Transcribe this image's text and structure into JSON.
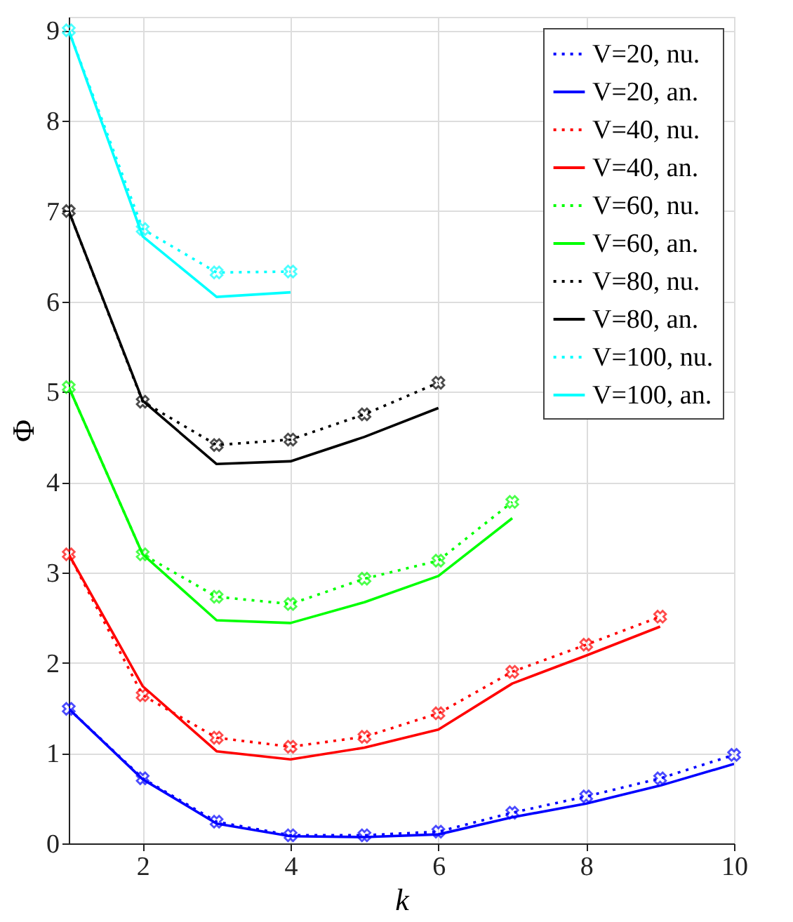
{
  "chart_data": {
    "type": "line",
    "xlabel": "k",
    "ylabel": "Φ",
    "xlim": [
      1,
      10
    ],
    "ylim": [
      0,
      9.15
    ],
    "xticks": [
      2,
      4,
      6,
      8,
      10
    ],
    "yticks": [
      0,
      1,
      2,
      3,
      4,
      5,
      6,
      7,
      8,
      9
    ],
    "grid": true,
    "legend": "top right",
    "series": [
      {
        "name": "V=20, nu.",
        "color": "#0000ff",
        "line_style": "dotted",
        "marker": "cross",
        "x": [
          1,
          2,
          3,
          4,
          5,
          6,
          7,
          8,
          9,
          10
        ],
        "values": [
          1.49,
          0.72,
          0.24,
          0.09,
          0.09,
          0.13,
          0.34,
          0.52,
          0.72,
          0.98
        ]
      },
      {
        "name": "V=20, an.",
        "color": "#0000ff",
        "line_style": "solid",
        "marker": "none",
        "x": [
          1,
          2,
          3,
          4,
          5,
          6,
          7,
          8,
          9,
          10
        ],
        "values": [
          1.49,
          0.71,
          0.22,
          0.08,
          0.07,
          0.1,
          0.29,
          0.44,
          0.64,
          0.88
        ]
      },
      {
        "name": "V=40, nu.",
        "color": "#ff0000",
        "line_style": "dotted",
        "marker": "cross",
        "x": [
          1,
          2,
          3,
          4,
          5,
          6,
          7,
          8,
          9
        ],
        "values": [
          3.2,
          1.64,
          1.17,
          1.07,
          1.18,
          1.44,
          1.9,
          2.2,
          2.51
        ]
      },
      {
        "name": "V=40, an.",
        "color": "#ff0000",
        "line_style": "solid",
        "marker": "none",
        "x": [
          1,
          2,
          3,
          4,
          5,
          6,
          7,
          8,
          9
        ],
        "values": [
          3.2,
          1.74,
          1.02,
          0.93,
          1.06,
          1.26,
          1.77,
          2.08,
          2.4
        ]
      },
      {
        "name": "V=60, nu.",
        "color": "#00ff00",
        "line_style": "dotted",
        "marker": "cross",
        "x": [
          1,
          2,
          3,
          4,
          5,
          6,
          7
        ],
        "values": [
          5.05,
          3.2,
          2.73,
          2.65,
          2.93,
          3.13,
          3.78
        ]
      },
      {
        "name": "V=60, an.",
        "color": "#00ff00",
        "line_style": "solid",
        "marker": "none",
        "x": [
          1,
          2,
          3,
          4,
          5,
          6,
          7
        ],
        "values": [
          5.05,
          3.2,
          2.47,
          2.44,
          2.67,
          2.96,
          3.6
        ]
      },
      {
        "name": "V=80, nu.",
        "color": "#000000",
        "line_style": "dotted",
        "marker": "cross",
        "x": [
          1,
          2,
          3,
          4,
          5,
          6
        ],
        "values": [
          7.0,
          4.89,
          4.41,
          4.47,
          4.75,
          5.1
        ]
      },
      {
        "name": "V=80, an.",
        "color": "#000000",
        "line_style": "solid",
        "marker": "none",
        "x": [
          1,
          2,
          3,
          4,
          5,
          6
        ],
        "values": [
          7.0,
          4.9,
          4.2,
          4.23,
          4.5,
          4.82
        ]
      },
      {
        "name": "V=100, nu.",
        "color": "#00ffff",
        "line_style": "dotted",
        "marker": "cross",
        "x": [
          1,
          2,
          3,
          4
        ],
        "values": [
          9.0,
          6.8,
          6.32,
          6.33
        ]
      },
      {
        "name": "V=100, an.",
        "color": "#00ffff",
        "line_style": "solid",
        "marker": "none",
        "x": [
          1,
          2,
          3,
          4
        ],
        "values": [
          9.0,
          6.72,
          6.05,
          6.1
        ]
      }
    ]
  }
}
